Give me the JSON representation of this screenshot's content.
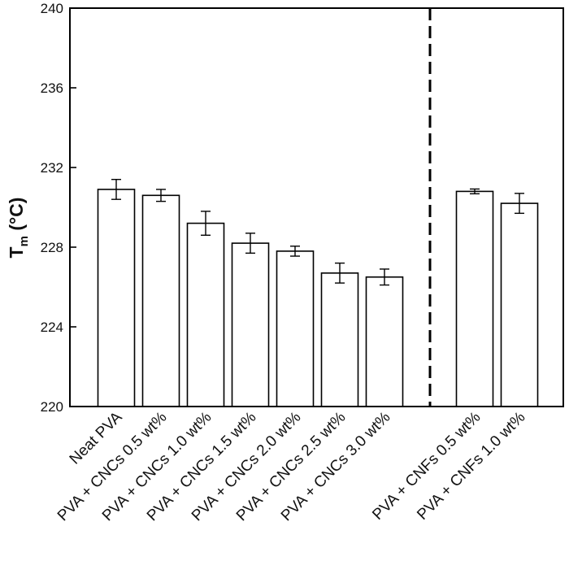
{
  "chart_data": {
    "type": "bar",
    "xlabel": "",
    "ylabel": {
      "symbol": "T",
      "subscript": "m",
      "unit": " (°C)"
    },
    "ylim": [
      220,
      240
    ],
    "yticks": [
      220,
      224,
      228,
      232,
      236,
      240
    ],
    "grid": false,
    "categories": [
      "Neat PVA",
      "PVA + CNCs 0.5 wt%",
      "PVA + CNCs 1.0 wt%",
      "PVA + CNCs 1.5 wt%",
      "PVA + CNCs 2.0 wt%",
      "PVA + CNCs 2.5 wt%",
      "PVA + CNCs 3.0 wt%",
      "PVA + CNFs 0.5 wt%",
      "PVA + CNFs 1.0 wt%"
    ],
    "values": [
      230.9,
      230.6,
      229.2,
      228.2,
      227.8,
      226.7,
      226.5,
      230.8,
      230.2
    ],
    "errors": [
      0.5,
      0.3,
      0.6,
      0.5,
      0.25,
      0.5,
      0.4,
      0.12,
      0.5
    ],
    "group_divider": "dashed vertical line between the CNC and CNF groups",
    "bar_fill": "#ffffff",
    "bar_stroke": "#000000"
  }
}
